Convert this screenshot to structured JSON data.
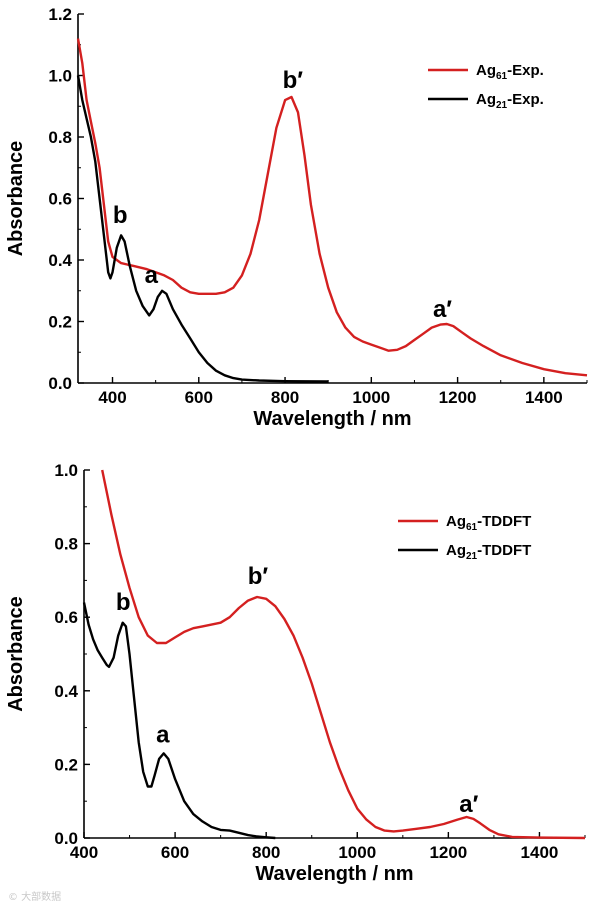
{
  "chart_data": [
    {
      "type": "line",
      "xlabel": "Wavelength / nm",
      "ylabel": "Absorbance",
      "xlim": [
        320,
        1500
      ],
      "ylim": [
        0,
        1.2
      ],
      "x_ticks": [
        "400",
        "600",
        "800",
        "1000",
        "1200",
        "1400"
      ],
      "y_ticks": [
        "0.0",
        "0.2",
        "0.4",
        "0.6",
        "0.8",
        "1.0",
        "1.2"
      ],
      "legend_position": "top-right",
      "series": [
        {
          "name_main": "Ag",
          "name_sub": "61",
          "name_suffix": "-Exp.",
          "color": "#d42020",
          "points": [
            [
              320,
              1.12
            ],
            [
              330,
              1.04
            ],
            [
              340,
              0.92
            ],
            [
              350,
              0.85
            ],
            [
              360,
              0.78
            ],
            [
              370,
              0.7
            ],
            [
              380,
              0.58
            ],
            [
              390,
              0.46
            ],
            [
              400,
              0.41
            ],
            [
              420,
              0.39
            ],
            [
              450,
              0.38
            ],
            [
              480,
              0.37
            ],
            [
              500,
              0.36
            ],
            [
              520,
              0.35
            ],
            [
              540,
              0.335
            ],
            [
              560,
              0.31
            ],
            [
              580,
              0.295
            ],
            [
              600,
              0.29
            ],
            [
              620,
              0.29
            ],
            [
              640,
              0.29
            ],
            [
              660,
              0.295
            ],
            [
              680,
              0.31
            ],
            [
              700,
              0.35
            ],
            [
              720,
              0.42
            ],
            [
              740,
              0.53
            ],
            [
              760,
              0.68
            ],
            [
              780,
              0.83
            ],
            [
              800,
              0.92
            ],
            [
              815,
              0.93
            ],
            [
              830,
              0.88
            ],
            [
              845,
              0.74
            ],
            [
              860,
              0.58
            ],
            [
              880,
              0.42
            ],
            [
              900,
              0.31
            ],
            [
              920,
              0.23
            ],
            [
              940,
              0.18
            ],
            [
              960,
              0.15
            ],
            [
              980,
              0.135
            ],
            [
              1000,
              0.125
            ],
            [
              1020,
              0.115
            ],
            [
              1040,
              0.105
            ],
            [
              1060,
              0.108
            ],
            [
              1080,
              0.12
            ],
            [
              1100,
              0.14
            ],
            [
              1120,
              0.16
            ],
            [
              1140,
              0.18
            ],
            [
              1160,
              0.19
            ],
            [
              1175,
              0.192
            ],
            [
              1190,
              0.185
            ],
            [
              1210,
              0.165
            ],
            [
              1230,
              0.145
            ],
            [
              1260,
              0.12
            ],
            [
              1300,
              0.09
            ],
            [
              1350,
              0.065
            ],
            [
              1400,
              0.045
            ],
            [
              1450,
              0.032
            ],
            [
              1500,
              0.025
            ]
          ]
        },
        {
          "name_main": "Ag",
          "name_sub": "21",
          "name_suffix": "-Exp.",
          "color": "#000000",
          "points": [
            [
              320,
              1.0
            ],
            [
              330,
              0.92
            ],
            [
              340,
              0.86
            ],
            [
              350,
              0.8
            ],
            [
              360,
              0.72
            ],
            [
              370,
              0.6
            ],
            [
              380,
              0.48
            ],
            [
              390,
              0.36
            ],
            [
              395,
              0.34
            ],
            [
              400,
              0.36
            ],
            [
              410,
              0.44
            ],
            [
              420,
              0.48
            ],
            [
              428,
              0.46
            ],
            [
              440,
              0.38
            ],
            [
              455,
              0.3
            ],
            [
              470,
              0.25
            ],
            [
              485,
              0.22
            ],
            [
              495,
              0.24
            ],
            [
              505,
              0.28
            ],
            [
              515,
              0.3
            ],
            [
              525,
              0.29
            ],
            [
              540,
              0.24
            ],
            [
              560,
              0.19
            ],
            [
              580,
              0.145
            ],
            [
              600,
              0.1
            ],
            [
              620,
              0.065
            ],
            [
              640,
              0.04
            ],
            [
              660,
              0.025
            ],
            [
              680,
              0.016
            ],
            [
              700,
              0.011
            ],
            [
              740,
              0.008
            ],
            [
              800,
              0.006
            ],
            [
              900,
              0.005
            ]
          ]
        }
      ],
      "annotations": [
        {
          "text": "b",
          "x": 418,
          "y": 0.52
        },
        {
          "text": "a",
          "x": 490,
          "y": 0.325
        },
        {
          "text": "b′",
          "x": 818,
          "y": 0.96
        },
        {
          "text": "a′",
          "x": 1165,
          "y": 0.215
        }
      ]
    },
    {
      "type": "line",
      "xlabel": "Wavelength / nm",
      "ylabel": "Absorbance",
      "xlim": [
        400,
        1500
      ],
      "ylim": [
        0,
        1.0
      ],
      "x_ticks": [
        "400",
        "600",
        "800",
        "1000",
        "1200",
        "1400"
      ],
      "y_ticks": [
        "0.0",
        "0.2",
        "0.4",
        "0.6",
        "0.8",
        "1.0"
      ],
      "legend_position": "top-right",
      "series": [
        {
          "name_main": "Ag",
          "name_sub": "61",
          "name_suffix": "-TDDFT",
          "color": "#d42020",
          "points": [
            [
              440,
              1.0
            ],
            [
              460,
              0.88
            ],
            [
              480,
              0.77
            ],
            [
              500,
              0.68
            ],
            [
              520,
              0.6
            ],
            [
              540,
              0.55
            ],
            [
              560,
              0.53
            ],
            [
              580,
              0.53
            ],
            [
              600,
              0.545
            ],
            [
              620,
              0.56
            ],
            [
              640,
              0.57
            ],
            [
              660,
              0.575
            ],
            [
              680,
              0.58
            ],
            [
              700,
              0.585
            ],
            [
              720,
              0.6
            ],
            [
              740,
              0.625
            ],
            [
              760,
              0.645
            ],
            [
              780,
              0.655
            ],
            [
              800,
              0.65
            ],
            [
              820,
              0.63
            ],
            [
              840,
              0.595
            ],
            [
              860,
              0.55
            ],
            [
              880,
              0.49
            ],
            [
              900,
              0.42
            ],
            [
              920,
              0.34
            ],
            [
              940,
              0.26
            ],
            [
              960,
              0.19
            ],
            [
              980,
              0.13
            ],
            [
              1000,
              0.08
            ],
            [
              1020,
              0.05
            ],
            [
              1040,
              0.03
            ],
            [
              1060,
              0.02
            ],
            [
              1080,
              0.018
            ],
            [
              1100,
              0.02
            ],
            [
              1130,
              0.025
            ],
            [
              1160,
              0.03
            ],
            [
              1190,
              0.038
            ],
            [
              1220,
              0.05
            ],
            [
              1240,
              0.057
            ],
            [
              1255,
              0.052
            ],
            [
              1270,
              0.04
            ],
            [
              1290,
              0.022
            ],
            [
              1310,
              0.01
            ],
            [
              1340,
              0.003
            ],
            [
              1400,
              0.001
            ],
            [
              1500,
              0.0
            ]
          ]
        },
        {
          "name_main": "Ag",
          "name_sub": "21",
          "name_suffix": "-TDDFT",
          "color": "#000000",
          "points": [
            [
              400,
              0.64
            ],
            [
              410,
              0.58
            ],
            [
              420,
              0.54
            ],
            [
              430,
              0.51
            ],
            [
              440,
              0.49
            ],
            [
              450,
              0.47
            ],
            [
              455,
              0.465
            ],
            [
              465,
              0.49
            ],
            [
              475,
              0.55
            ],
            [
              485,
              0.585
            ],
            [
              492,
              0.575
            ],
            [
              500,
              0.5
            ],
            [
              510,
              0.38
            ],
            [
              520,
              0.26
            ],
            [
              530,
              0.18
            ],
            [
              540,
              0.14
            ],
            [
              548,
              0.14
            ],
            [
              555,
              0.17
            ],
            [
              565,
              0.215
            ],
            [
              575,
              0.23
            ],
            [
              585,
              0.215
            ],
            [
              600,
              0.16
            ],
            [
              620,
              0.1
            ],
            [
              640,
              0.065
            ],
            [
              660,
              0.045
            ],
            [
              680,
              0.03
            ],
            [
              700,
              0.022
            ],
            [
              720,
              0.02
            ],
            [
              740,
              0.014
            ],
            [
              760,
              0.008
            ],
            [
              780,
              0.004
            ],
            [
              800,
              0.002
            ],
            [
              820,
              0.0
            ]
          ]
        }
      ],
      "annotations": [
        {
          "text": "b",
          "x": 486,
          "y": 0.62
        },
        {
          "text": "a",
          "x": 573,
          "y": 0.26
        },
        {
          "text": "b′",
          "x": 782,
          "y": 0.69
        },
        {
          "text": "a′",
          "x": 1245,
          "y": 0.07
        }
      ]
    }
  ],
  "watermark": "© 大部数据"
}
